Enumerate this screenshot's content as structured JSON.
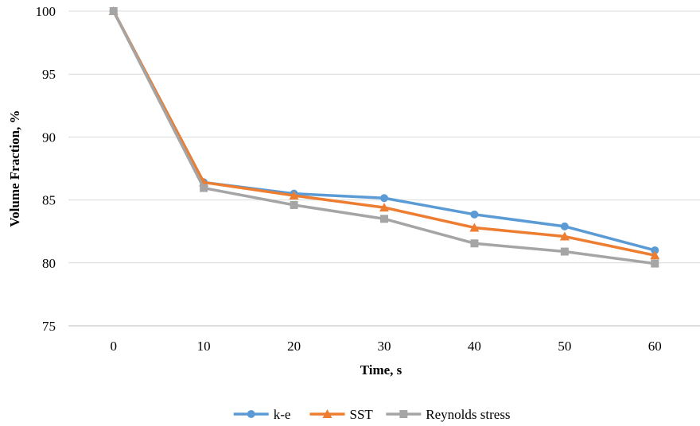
{
  "chart_data": {
    "type": "line",
    "title": "",
    "xlabel": "Time, s",
    "ylabel": "Volume Fraction, %",
    "x": [
      0,
      10,
      20,
      30,
      40,
      50,
      60
    ],
    "x_tick_labels": [
      "0",
      "10",
      "20",
      "30",
      "40",
      "50",
      "60"
    ],
    "ylim": [
      75,
      100
    ],
    "y_ticks": [
      75,
      80,
      85,
      90,
      95,
      100
    ],
    "y_tick_labels": [
      "75",
      "80",
      "85",
      "90",
      "95",
      "100"
    ],
    "grid": "horizontal",
    "legend_position": "bottom",
    "series": [
      {
        "name": "k-e",
        "color": "#5B9BD5",
        "marker": "circle",
        "values": [
          100,
          86.4,
          85.5,
          85.15,
          83.85,
          82.9,
          81.0
        ]
      },
      {
        "name": "SST",
        "color": "#ED7D31",
        "marker": "triangle",
        "values": [
          100,
          86.4,
          85.35,
          84.4,
          82.8,
          82.1,
          80.6
        ]
      },
      {
        "name": "Reynolds stress",
        "color": "#A5A5A5",
        "marker": "square",
        "values": [
          100,
          85.95,
          84.6,
          83.5,
          81.55,
          80.9,
          79.95
        ]
      }
    ]
  }
}
